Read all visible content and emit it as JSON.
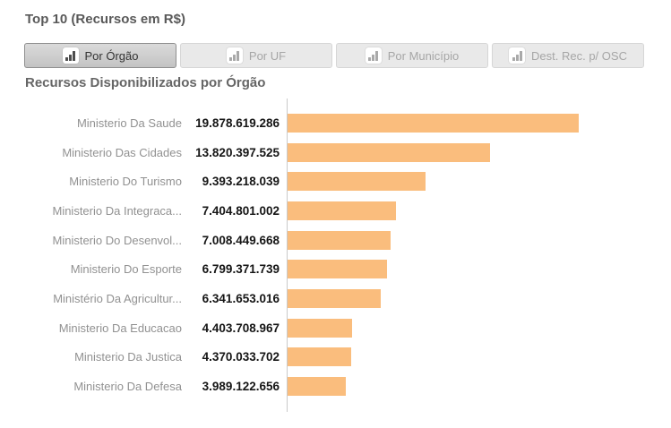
{
  "header": {
    "title": "Top 10 (Recursos em R$)"
  },
  "tabs": [
    {
      "label": "Por Órgão",
      "selected": true,
      "icon": "bar-chart-icon"
    },
    {
      "label": "Por UF",
      "selected": false,
      "icon": "bar-chart-icon"
    },
    {
      "label": "Por Município",
      "selected": false,
      "icon": "bar-chart-icon"
    },
    {
      "label": "Dest. Rec. p/ OSC",
      "selected": false,
      "icon": "bar-chart-icon"
    }
  ],
  "chart_data": {
    "type": "bar",
    "orientation": "horizontal",
    "title": "Recursos Disponibilizados por Órgão",
    "categories": [
      "Ministerio Da Saude",
      "Ministerio Das Cidades",
      "Ministerio Do Turismo",
      "Ministerio Da Integraca...",
      "Ministerio Do Desenvol...",
      "Ministerio Do Esporte",
      "Ministério Da Agricultur...",
      "Ministerio Da Educacao",
      "Ministerio Da Justica",
      "Ministerio Da Defesa"
    ],
    "values": [
      19878619286,
      13820397525,
      9393218039,
      7404801002,
      7008449668,
      6799371739,
      6341653016,
      4403708967,
      4370033702,
      3989122656
    ],
    "value_labels": [
      "19.878.619.286",
      "13.820.397.525",
      "9.393.218.039",
      "7.404.801.002",
      "7.008.449.668",
      "6.799.371.739",
      "6.341.653.016",
      "4.403.708.967",
      "4.370.033.702",
      "3.989.122.656"
    ],
    "xlim": [
      0,
      19878619286
    ],
    "grid": false,
    "legend": false,
    "bar_color": "#FABD7D",
    "axis_color": "#C9C9C9"
  }
}
